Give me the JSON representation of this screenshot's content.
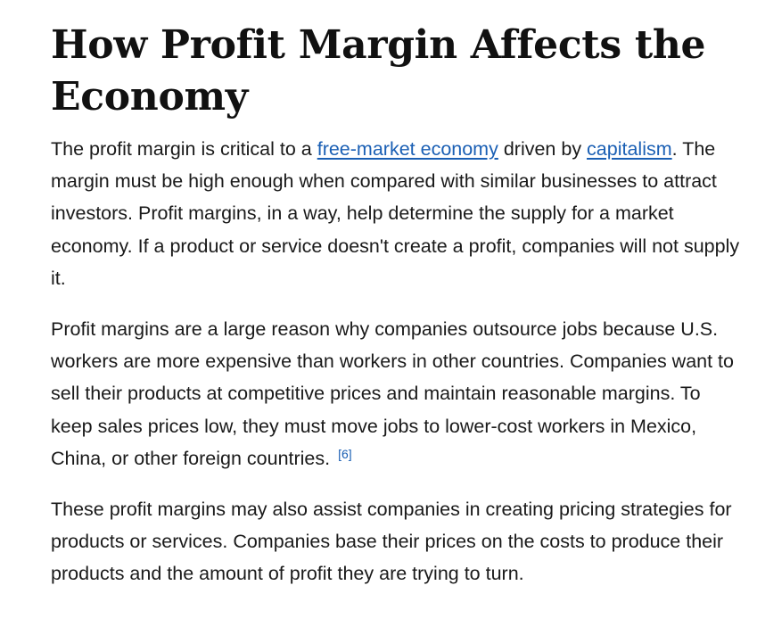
{
  "article": {
    "title": "How Profit Margin Affects the Economy",
    "paragraphs": [
      {
        "before_link1": "The profit margin is critical to a ",
        "link1": "free-market economy",
        "between_links": " driven by ",
        "link2": "capitalism",
        "after_link2": ". The margin must be high enough when compared with similar businesses to attract investors. Profit margins, in a way, help determine the supply for a market economy. If a product or service doesn't create a profit, companies will not supply it."
      },
      {
        "text": "Profit margins are a large reason why companies outsource jobs because U.S. workers are more expensive than workers in other countries. Companies want to sell their products at competitive prices and maintain reasonable margins. To keep sales prices low, they must move jobs to lower-cost workers in Mexico, China, or other foreign countries. ",
        "citation": "[6]"
      },
      {
        "text": "These profit margins may also assist companies in creating pricing strategies for products or services. Companies base their prices on the costs to produce their products and the amount of profit they are trying to turn."
      }
    ]
  },
  "colors": {
    "text": "#1a1a1a",
    "heading": "#111111",
    "link": "#1a5fb4",
    "background": "#ffffff"
  }
}
